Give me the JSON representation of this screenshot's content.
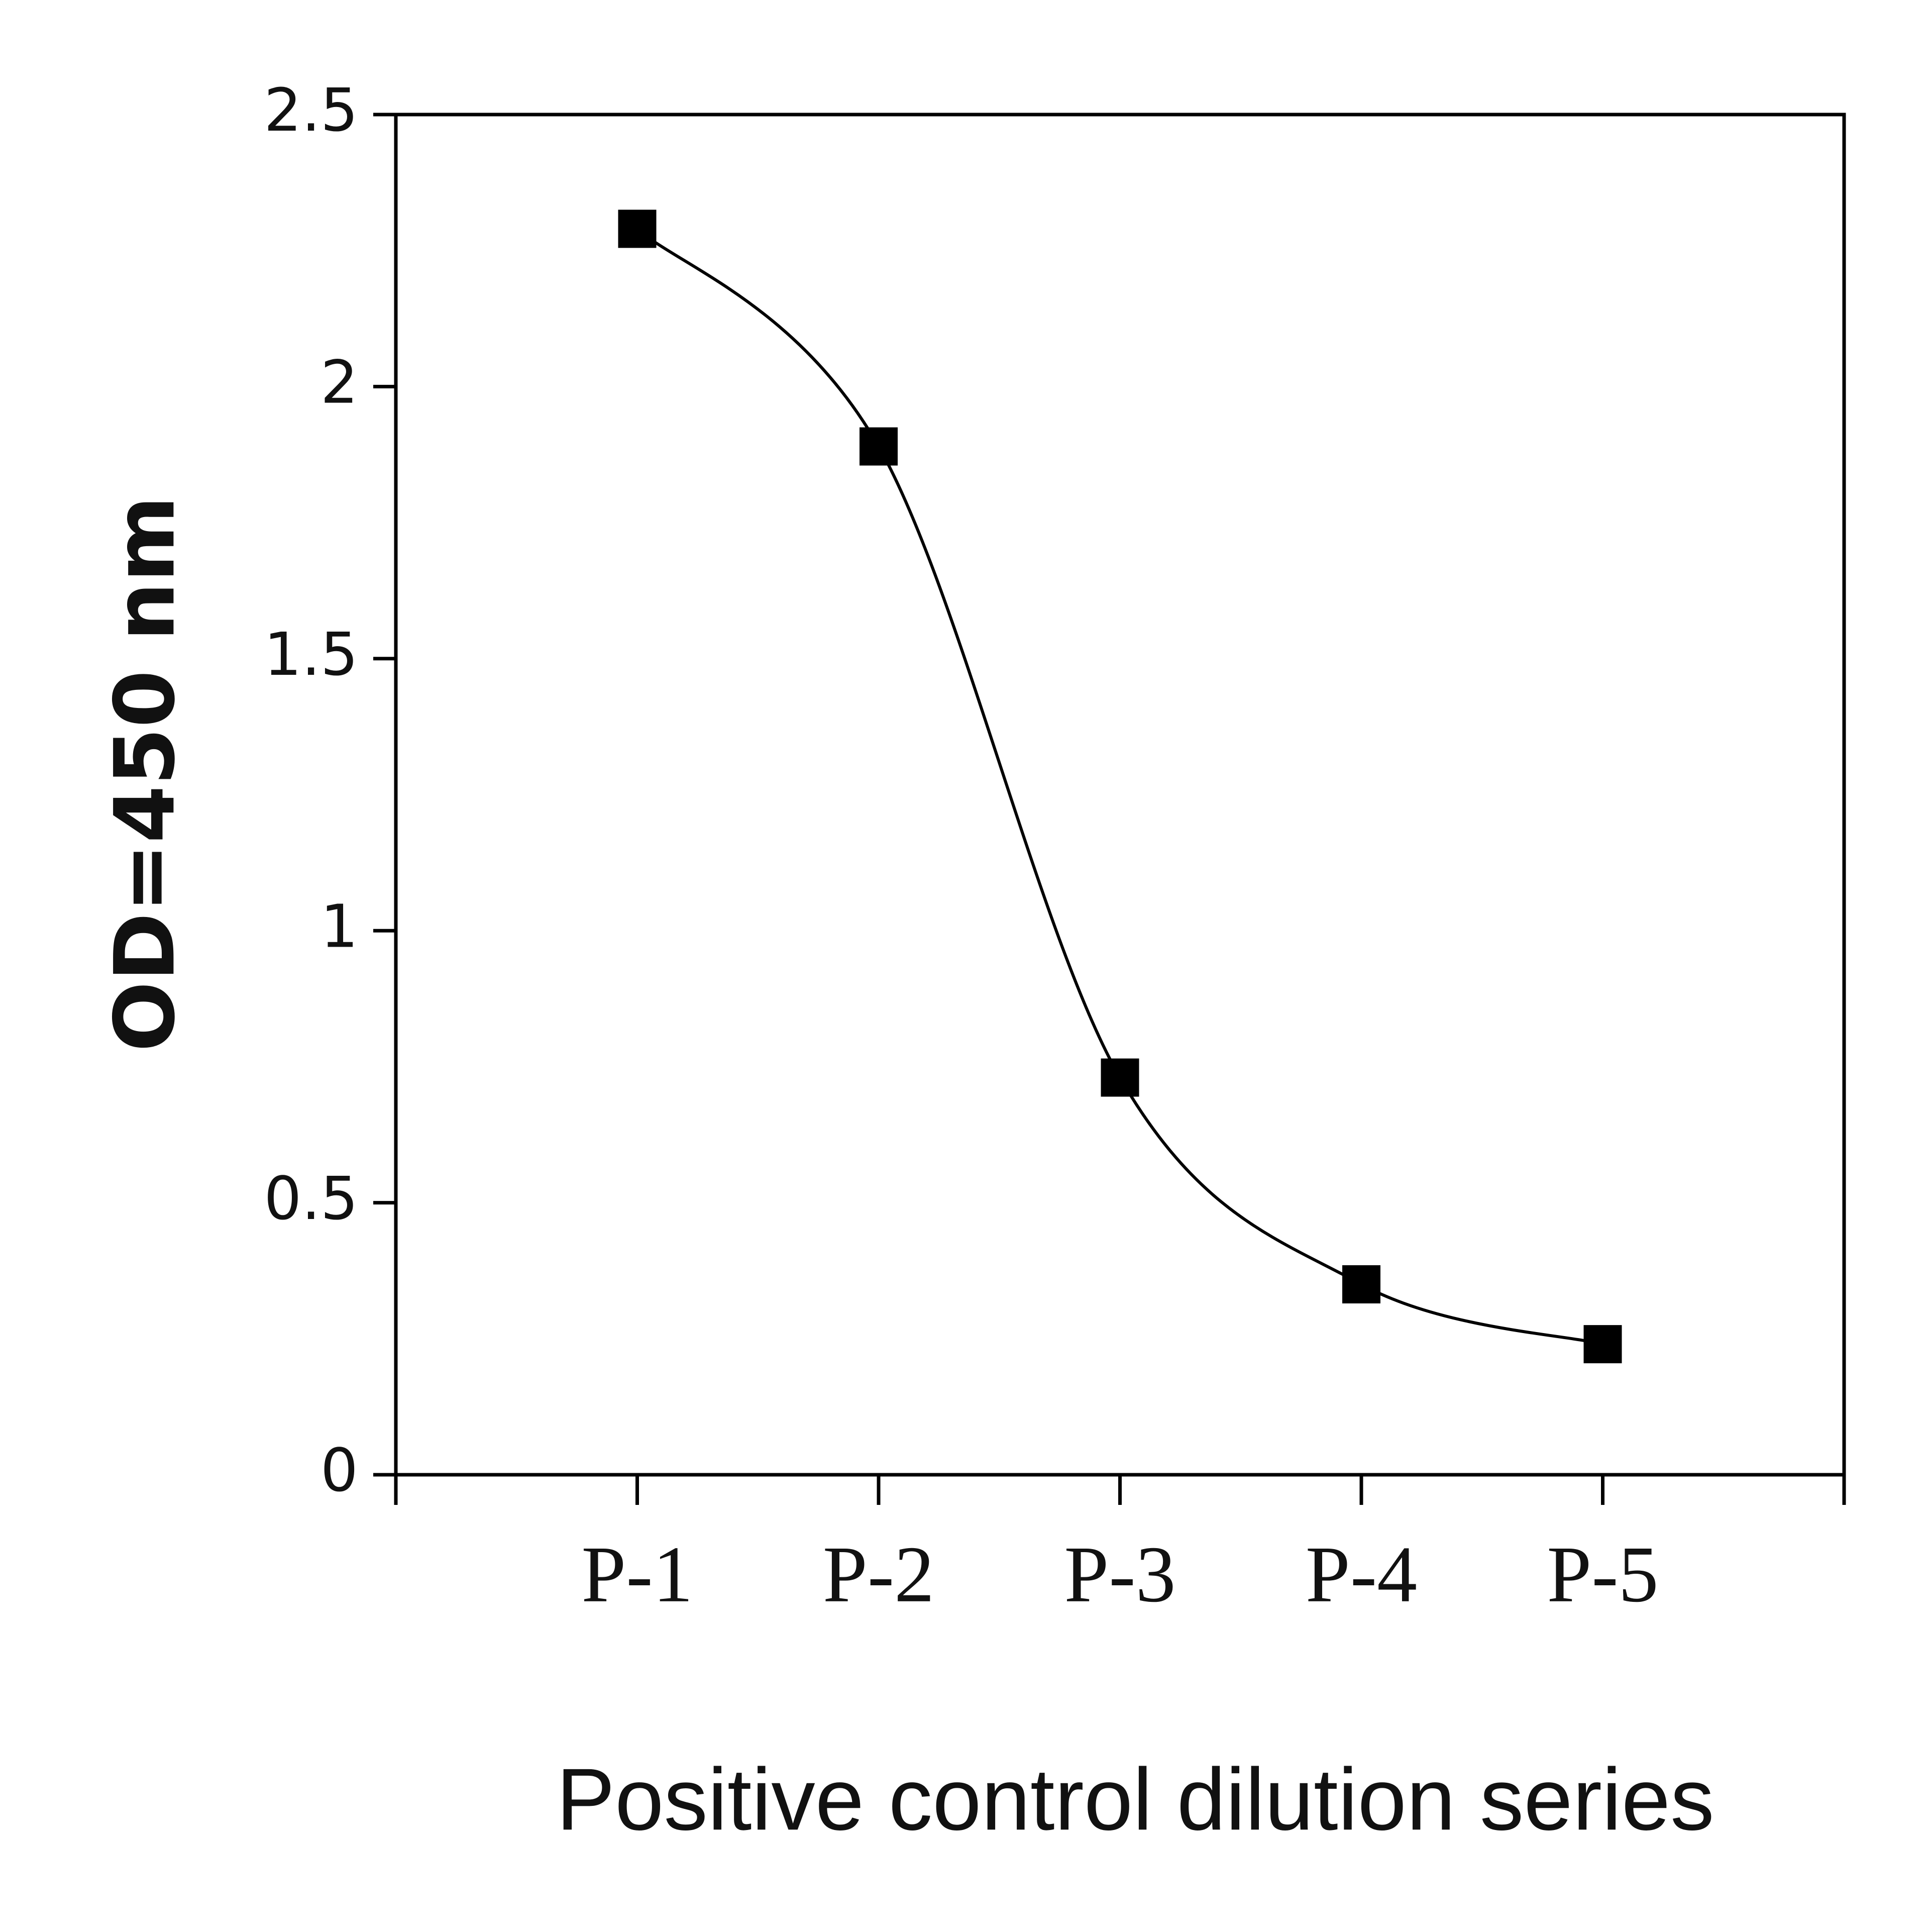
{
  "chart_data": {
    "type": "line",
    "smooth": true,
    "xlabel": "Positive control dilution series",
    "ylabel": "OD=450 nm",
    "categories": [
      "P-1",
      "P-2",
      "P-3",
      "P-4",
      "P-5"
    ],
    "values": [
      2.29,
      1.89,
      0.73,
      0.35,
      0.24
    ],
    "color": "#000000",
    "ylim": [
      0,
      2.5
    ],
    "yticks": [
      0,
      0.5,
      1,
      1.5,
      2,
      2.5
    ],
    "grid": false
  }
}
